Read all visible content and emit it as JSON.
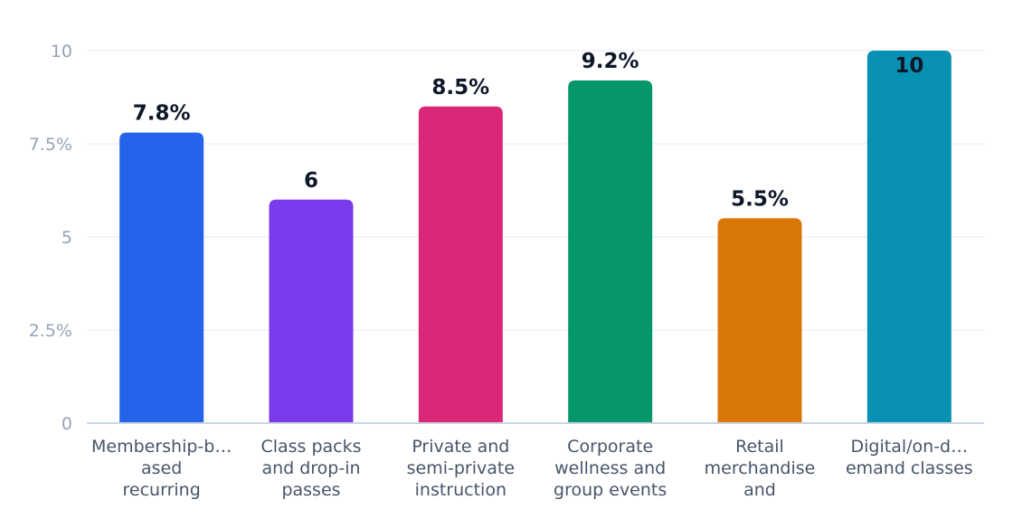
{
  "chart_data": {
    "type": "bar",
    "categories": [
      [
        "Membership-b…",
        "ased",
        "recurring"
      ],
      [
        "Class packs",
        "and drop-in",
        "passes"
      ],
      [
        "Private and",
        "semi-private",
        "instruction"
      ],
      [
        "Corporate",
        "wellness and",
        "group events"
      ],
      [
        "Retail",
        "merchandise",
        "and"
      ],
      [
        "Digital/on-d…",
        "emand classes"
      ]
    ],
    "values": [
      7.8,
      6,
      8.5,
      9.2,
      5.5,
      10
    ],
    "data_labels": [
      "7.8%",
      "6",
      "8.5%",
      "9.2%",
      "5.5%",
      "10"
    ],
    "colors": [
      "#2563eb",
      "#7c3aed",
      "#db2777",
      "#059669",
      "#d97706",
      "#0891b2"
    ],
    "y_ticks": [
      {
        "value": 0,
        "label": "0"
      },
      {
        "value": 2.5,
        "label": "2.5%"
      },
      {
        "value": 5,
        "label": "5"
      },
      {
        "value": 7.5,
        "label": "7.5%"
      },
      {
        "value": 10,
        "label": "10"
      }
    ],
    "ylim": [
      0,
      10
    ],
    "grid": true,
    "legend": "none"
  }
}
